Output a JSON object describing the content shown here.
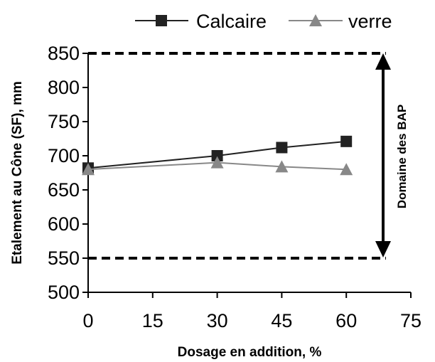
{
  "chart_data": {
    "type": "line",
    "xlabel": "Dosage en addition, %",
    "ylabel": "Etalement au Cône (SF), mm",
    "x": [
      0,
      30,
      45,
      60
    ],
    "xlim": [
      0,
      75
    ],
    "ylim": [
      500,
      850
    ],
    "xticks": [
      "0",
      "15",
      "30",
      "45",
      "60",
      "75"
    ],
    "yticks": [
      "500",
      "550",
      "600",
      "650",
      "700",
      "750",
      "800",
      "850"
    ],
    "series": [
      {
        "name": "Calcaire",
        "values": [
          682,
          700,
          712,
          721
        ],
        "color": "#222222",
        "marker": "square"
      },
      {
        "name": "verre",
        "values": [
          680,
          690,
          684,
          680
        ],
        "color": "#888888",
        "marker": "triangle"
      }
    ],
    "reference_lines": [
      850,
      550
    ],
    "annotation": "Domaine des BAP",
    "legend_position": "top-right",
    "grid": false
  }
}
